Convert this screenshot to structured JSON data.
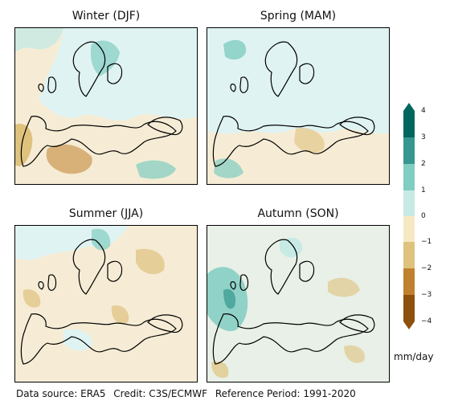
{
  "panels": [
    {
      "title": "Winter (DJF)"
    },
    {
      "title": "Spring (MAM)"
    },
    {
      "title": "Summer (JJA)"
    },
    {
      "title": "Autumn (SON)"
    }
  ],
  "colorbar": {
    "ticks": [
      "4",
      "3",
      "2",
      "1",
      "0",
      "−1",
      "−2",
      "−3",
      "−4"
    ],
    "units": "mm/day",
    "colors": [
      "#8c510a",
      "#bf812d",
      "#dfc27d",
      "#f6e8c3",
      "#e0f3f3",
      "#c7eae5",
      "#80cdc1",
      "#35978f",
      "#01665e"
    ]
  },
  "footer": {
    "source": "Data source: ERA5",
    "credit": "Credit: C3S/ECMWF",
    "reference": "Reference Period: 1991-2020"
  }
}
